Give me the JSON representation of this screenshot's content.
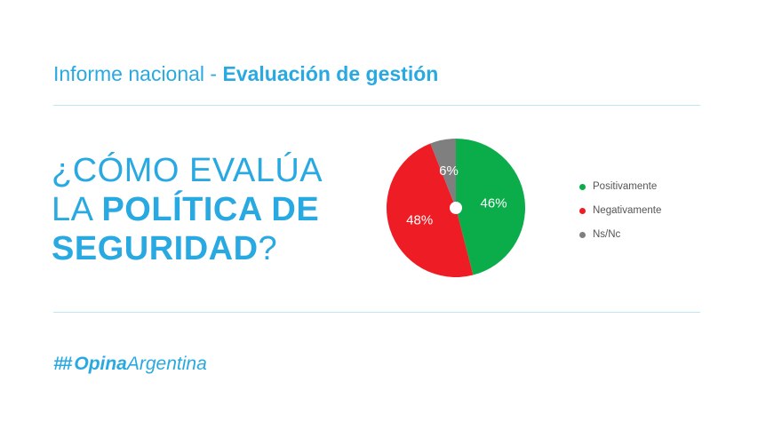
{
  "header": {
    "prefix": "Informe nacional - ",
    "highlight": "Evaluación de gestión"
  },
  "question": {
    "line1": "¿CÓMO EVALÚA",
    "line2_regular": "LA ",
    "line2_bold": "POLÍTICA DE",
    "line3_bold": "SEGURIDAD",
    "line3_end": "?"
  },
  "chart_data": {
    "type": "pie",
    "slices": [
      {
        "name": "Positivamente",
        "value": 46,
        "label": "46%",
        "color": "#0aad4a"
      },
      {
        "name": "Negativamente",
        "value": 48,
        "label": "48%",
        "color": "#ee1c25"
      },
      {
        "name": "Ns/Nc",
        "value": 6,
        "label": "6%",
        "color": "#7f7f7f"
      }
    ],
    "legend_position": "right"
  },
  "brand": {
    "hash": "##",
    "name_bold": "Opina",
    "name_regular": "Argentina",
    "color": "#29a9e1"
  }
}
